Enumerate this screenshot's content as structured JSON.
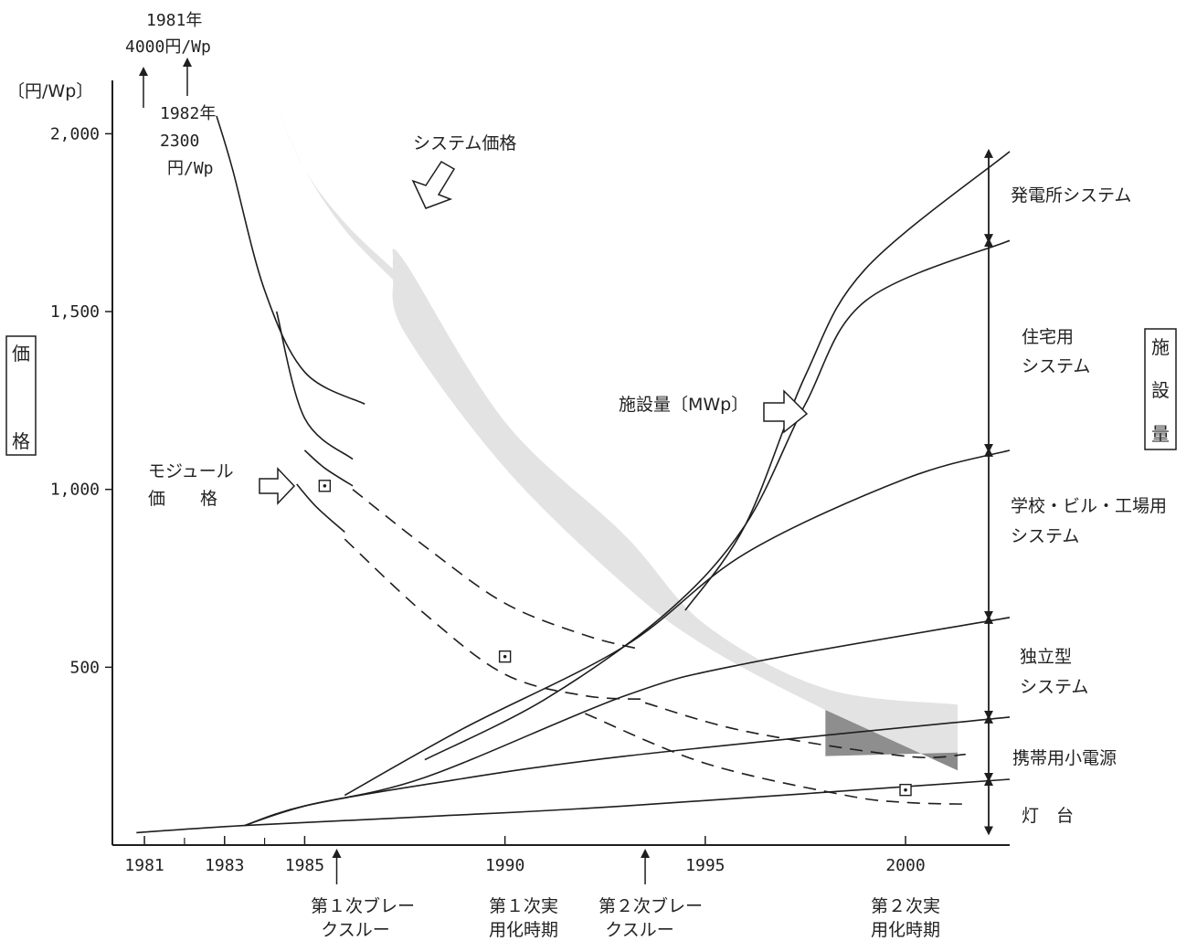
{
  "chart_data": {
    "type": "line",
    "y_axis": {
      "unit_label": "〔円/Wp〕",
      "title_chars": [
        "価",
        "格"
      ],
      "ticks": [
        {
          "value": 500,
          "label": "500"
        },
        {
          "value": 1000,
          "label": "1,000"
        },
        {
          "value": 1500,
          "label": "1,500"
        },
        {
          "value": 2000,
          "label": "2,000"
        }
      ],
      "ylim": [
        0,
        2150
      ]
    },
    "y2_axis": {
      "title_chars": [
        "施",
        "設",
        "量"
      ]
    },
    "x_axis": {
      "ticks": [
        {
          "year": 1981,
          "label": "1981"
        },
        {
          "year": 1983,
          "label": "1983"
        },
        {
          "year": 1985,
          "label": "1985"
        },
        {
          "year": 1990,
          "label": "1990"
        },
        {
          "year": 1995,
          "label": "1995"
        },
        {
          "year": 2000,
          "label": "2000"
        }
      ],
      "minor_ticks": [
        1982,
        1984
      ],
      "xlim": [
        1980.2,
        2002.6
      ]
    },
    "offscale_notes": [
      {
        "year": 1981,
        "lines": [
          "1981年",
          "4000円/Wp"
        ]
      },
      {
        "year": 1982,
        "lines": [
          "1982年",
          "2300",
          "円/Wp"
        ]
      }
    ],
    "milestones": [
      {
        "year": 1985.8,
        "lines": [
          "第１次ブレー",
          "クスルー"
        ]
      },
      {
        "year": 1990,
        "lines": [
          "第１次実",
          "用化時期"
        ]
      },
      {
        "year": 1993.5,
        "lines": [
          "第２次ブレー",
          "クスルー"
        ]
      },
      {
        "year": 2000,
        "lines": [
          "第２次実",
          "用化時期"
        ]
      }
    ],
    "annotations": {
      "system_price": "システム価格",
      "module_price_lines": [
        "モジュール",
        "価　　格"
      ],
      "installed": "施設量〔MWp〕"
    },
    "system_price_band": {
      "segment1": {
        "x": [
          1984.2,
          1985,
          1986,
          1987.2
        ],
        "upper": [
          2100,
          1900,
          1750,
          1620
        ],
        "lower": [
          2100,
          1900,
          1730,
          1590
        ]
      },
      "segment2": {
        "x": [
          1987.2,
          1987.5,
          1990,
          1993,
          1995,
          1998,
          2001.3
        ],
        "upper": [
          1650,
          1640,
          1190,
          870,
          620,
          440,
          395
        ],
        "lower": [
          1590,
          1440,
          1060,
          730,
          560,
          380,
          210
        ]
      }
    },
    "module_price_curves": {
      "solid": [
        {
          "x": [
            1982.8,
            1983.2,
            1984,
            1985,
            1986.5
          ],
          "y": [
            2050,
            1900,
            1560,
            1330,
            1240
          ]
        },
        {
          "x": [
            1984.3,
            1985,
            1986.2
          ],
          "y": [
            1500,
            1200,
            1085
          ]
        },
        {
          "x": [
            1985,
            1985.5,
            1986.2
          ],
          "y": [
            1110,
            1060,
            1010
          ]
        },
        {
          "x": [
            1984.8,
            1985.3,
            1986
          ],
          "y": [
            1015,
            950,
            880
          ]
        }
      ],
      "dashed": [
        {
          "x": [
            1986.2,
            1988,
            1990,
            1992,
            1993.4
          ],
          "y": [
            1000,
            840,
            680,
            590,
            550
          ]
        },
        {
          "x": [
            1986,
            1988,
            1990,
            1992,
            1993.5
          ],
          "y": [
            860,
            650,
            480,
            420,
            410
          ]
        },
        {
          "x": [
            1993.5,
            1996,
            2000,
            2001.5
          ],
          "y": [
            400,
            320,
            250,
            255
          ]
        },
        {
          "x": [
            1992,
            1995,
            1998.5,
            2000,
            2001.5
          ],
          "y": [
            370,
            230,
            140,
            120,
            115
          ]
        }
      ]
    },
    "installed_boundaries": [
      {
        "x": [
          1980.8,
          1983.5,
          1988,
          1993,
          2002.6
        ],
        "y": [
          35,
          55,
          80,
          110,
          185
        ]
      },
      {
        "x": [
          1983.5,
          1985,
          1988,
          1993,
          2002.6
        ],
        "y": [
          55,
          110,
          170,
          250,
          360
        ]
      },
      {
        "x": [
          1983.5,
          1985,
          1988,
          1993,
          1996,
          2002.6
        ],
        "y": [
          55,
          110,
          190,
          420,
          510,
          640
        ]
      },
      {
        "x": [
          1986,
          1989,
          1993,
          1996,
          2000,
          2002.6
        ],
        "y": [
          140,
          330,
          560,
          820,
          1030,
          1110
        ]
      },
      {
        "x": [
          1988,
          1991,
          1994,
          1996,
          1997.5,
          1999,
          2002.6
        ],
        "y": [
          240,
          410,
          650,
          900,
          1240,
          1530,
          1700
        ]
      },
      {
        "x": [
          1994.5,
          1996,
          1997.5,
          1999,
          2002.6
        ],
        "y": [
          660,
          900,
          1320,
          1620,
          1950
        ]
      }
    ],
    "markers": [
      {
        "x": 1985.5,
        "y": 1010
      },
      {
        "x": 1990,
        "y": 530
      },
      {
        "x": 2000,
        "y": 155
      }
    ],
    "segments": [
      {
        "label_lines": [
          "発電所システム"
        ],
        "y_top": 1950,
        "y_bottom": 1700
      },
      {
        "label_lines": [
          "住宅用",
          "システム"
        ],
        "y_top": 1700,
        "y_bottom": 1110
      },
      {
        "label_lines": [
          "学校・ビル・工場用",
          "システム"
        ],
        "y_top": 1110,
        "y_bottom": 640
      },
      {
        "label_lines": [
          "独立型",
          "システム"
        ],
        "y_top": 640,
        "y_bottom": 360
      },
      {
        "label_lines": [
          "携帯用小電源"
        ],
        "y_top": 360,
        "y_bottom": 185
      },
      {
        "label_lines": [
          "灯　台"
        ],
        "y_top": 185,
        "y_bottom": 35
      }
    ]
  }
}
